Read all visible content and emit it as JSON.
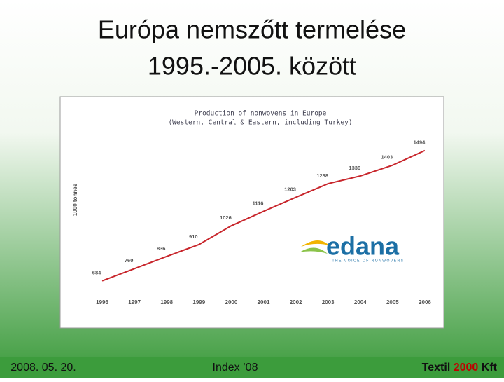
{
  "slide": {
    "title_lines": [
      "Európa nemszőtt termelése",
      "1995.-2005. között"
    ],
    "footer": {
      "date": "2008. 05. 20.",
      "center": "Index ’08",
      "brand": [
        "Textil",
        "2000",
        "Kft"
      ]
    },
    "logo": {
      "name": "edana",
      "tagline": "THE VOICE OF NONWOVENS"
    }
  },
  "chart_data": {
    "type": "line",
    "title_lines": [
      "Production of nonwovens in Europe",
      "(Western, Central & Eastern, including Turkey)"
    ],
    "y_label": "1000 tonnes",
    "categories": [
      "1996",
      "1997",
      "1998",
      "1999",
      "2000",
      "2001",
      "2002",
      "2003",
      "2004",
      "2005",
      "2006"
    ],
    "series": [
      {
        "name": "Production",
        "color": "#c8262c",
        "values": [
          684,
          760,
          836,
          910,
          1026,
          1116,
          1203,
          1288,
          1336,
          1403,
          1494
        ]
      }
    ],
    "ylim": [
      600,
      1580
    ]
  }
}
